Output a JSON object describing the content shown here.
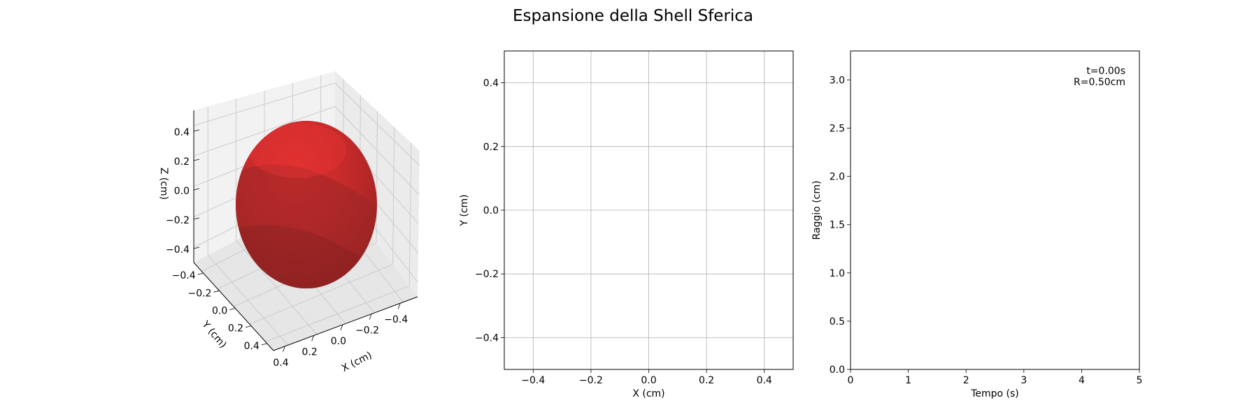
{
  "figure": {
    "title": "Espansione della Shell Sferica"
  },
  "chart_data": [
    {
      "type": "surface3d",
      "shape": "sphere",
      "radius": 0.5,
      "color": "#d62728",
      "xlabel": "X (cm)",
      "ylabel": "Y (cm)",
      "zlabel": "Z (cm)",
      "xlim": [
        -0.5,
        0.5
      ],
      "ylim": [
        -0.5,
        0.5
      ],
      "zlim": [
        -0.5,
        0.5
      ],
      "xticks": [
        "−0.4",
        "−0.2",
        "0.0",
        "0.2",
        "0.4"
      ],
      "yticks": [
        "−0.4",
        "−0.2",
        "0.0",
        "0.2",
        "0.4"
      ],
      "zticks": [
        "−0.4",
        "−0.2",
        "0.0",
        "0.2",
        "0.4"
      ],
      "grid": true
    },
    {
      "type": "line",
      "series": [],
      "xlabel": "X (cm)",
      "ylabel": "Y (cm)",
      "xlim": [
        -0.5,
        0.5
      ],
      "ylim": [
        -0.5,
        0.5
      ],
      "xticks": [
        -0.4,
        -0.2,
        0.0,
        0.2,
        0.4
      ],
      "yticks": [
        -0.4,
        -0.2,
        0.0,
        0.2,
        0.4
      ],
      "tick_labels": [
        "−0.4",
        "−0.2",
        "0.0",
        "0.2",
        "0.4"
      ],
      "grid": true
    },
    {
      "type": "line",
      "series": [],
      "xlabel": "Tempo (s)",
      "ylabel": "Raggio (cm)",
      "xlim": [
        0,
        5
      ],
      "ylim": [
        0,
        3.3
      ],
      "xticks": [
        0,
        1,
        2,
        3,
        4,
        5
      ],
      "yticks": [
        0.0,
        0.5,
        1.0,
        1.5,
        2.0,
        2.5,
        3.0
      ],
      "xtick_labels": [
        "0",
        "1",
        "2",
        "3",
        "4",
        "5"
      ],
      "ytick_labels": [
        "0.0",
        "0.5",
        "1.0",
        "1.5",
        "2.0",
        "2.5",
        "3.0"
      ],
      "grid": false,
      "annotation": [
        "t=0.00s",
        "R=0.50cm"
      ]
    }
  ]
}
